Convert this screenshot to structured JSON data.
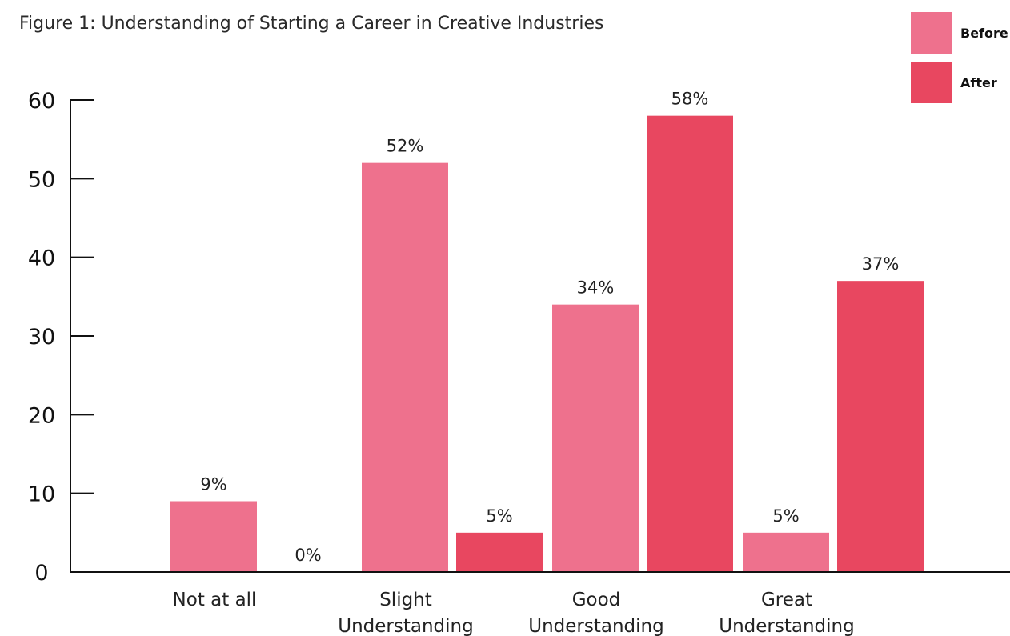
{
  "chart_data": {
    "type": "bar",
    "title": "Figure 1: Understanding of Starting a Career in Creative Industries",
    "categories": [
      [
        "Not at all"
      ],
      [
        "Slight",
        "Understanding"
      ],
      [
        "Good",
        "Understanding"
      ],
      [
        "Great",
        "Understanding"
      ]
    ],
    "series": [
      {
        "name": "Before",
        "color": "#ee718d",
        "values": [
          9,
          52,
          34,
          5
        ],
        "labels": [
          "9%",
          "52%",
          "34%",
          "5%"
        ]
      },
      {
        "name": "After",
        "color": "#e84760",
        "values": [
          0,
          5,
          58,
          37
        ],
        "labels": [
          "0%",
          "5%",
          "58%",
          "37%"
        ]
      }
    ],
    "ylim": [
      0,
      60
    ],
    "yticks": [
      0,
      10,
      20,
      30,
      40,
      50,
      60
    ],
    "grid": false,
    "legend_position": "top-right"
  }
}
